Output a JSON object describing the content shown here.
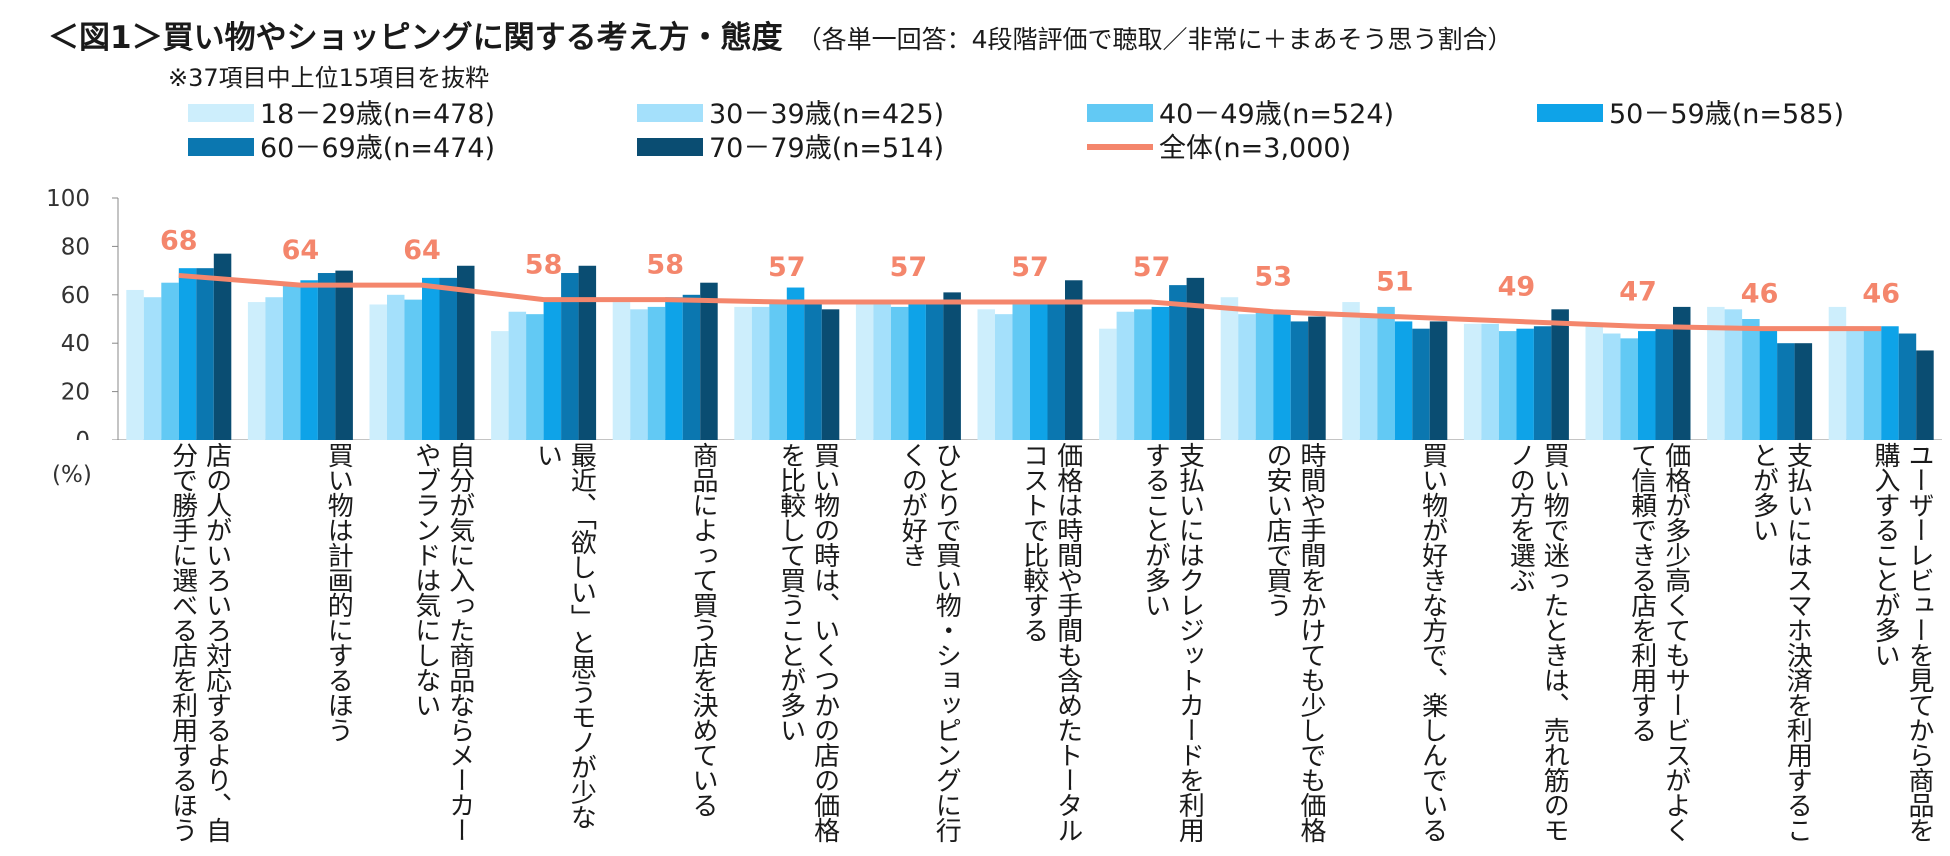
{
  "title": "＜図1＞買い物やショッピングに関する考え方・態度",
  "subtitle": "（各単一回答：4段階評価で聴取／非常に＋まあそう思う割合）",
  "note": "※37項目中上位15項目を抜粋",
  "unit": "(%)",
  "chart_data": {
    "type": "bar",
    "ylim": [
      0,
      100
    ],
    "yticks": [
      "0",
      "20",
      "40",
      "60",
      "80",
      "100"
    ],
    "grid": false,
    "legend_position": "top",
    "categories": [
      "店の人がいろいろ対応するより、自分で勝手に選べる店を利用するほう",
      "買い物は計画的にするほう",
      "自分が気に入った商品ならメーカーやブランドは気にしない",
      "最近、「欲しい」と思うモノが少ない",
      "商品によって買う店を決めている",
      "買い物の時は、いくつかの店の価格を比較して買うことが多い",
      "ひとりで買い物・ショッピングに行くのが好き",
      "価格は時間や手間も含めたトータルコストで比較する",
      "支払いにはクレジットカードを利用することが多い",
      "時間や手間をかけても少しでも価格の安い店で買う",
      "買い物が好きな方で、楽しんでいる",
      "買い物で迷ったときは、売れ筋のモノの方を選ぶ",
      "価格が多少高くてもサービスがよくて信頼できる店を利用する",
      "支払いにはスマホ決済を利用することが多い",
      "ユーザーレビューを見てから商品を購入することが多い"
    ],
    "series": [
      {
        "name": "18－29歳(n=478)",
        "color": "#cdeefc",
        "values": [
          62,
          57,
          56,
          45,
          57,
          55,
          56,
          54,
          46,
          59,
          57,
          48,
          47,
          55,
          55
        ]
      },
      {
        "name": "30－39歳(n=425)",
        "color": "#a4e0fb",
        "values": [
          59,
          59,
          60,
          53,
          54,
          55,
          58,
          52,
          53,
          52,
          52,
          48,
          44,
          54,
          47
        ]
      },
      {
        "name": "40－49歳(n=524)",
        "color": "#62c9f4",
        "values": [
          65,
          64,
          58,
          52,
          55,
          57,
          55,
          57,
          54,
          53,
          55,
          45,
          42,
          50,
          46
        ]
      },
      {
        "name": "50－59歳(n=585)",
        "color": "#0ea3e8",
        "values": [
          71,
          66,
          67,
          58,
          59,
          63,
          56,
          56,
          55,
          52,
          49,
          46,
          45,
          46,
          47
        ]
      },
      {
        "name": "60－69歳(n=474)",
        "color": "#0b77b0",
        "values": [
          71,
          69,
          67,
          69,
          60,
          56,
          57,
          57,
          64,
          49,
          46,
          47,
          47,
          40,
          44
        ]
      },
      {
        "name": "70－79歳(n=514)",
        "color": "#0a4d72",
        "values": [
          77,
          70,
          72,
          72,
          65,
          54,
          61,
          66,
          67,
          51,
          49,
          54,
          55,
          40,
          37
        ]
      }
    ],
    "total": {
      "name": "全体(n=3,000)",
      "color": "#f4866c",
      "values": [
        68,
        64,
        64,
        58,
        58,
        57,
        57,
        57,
        57,
        53,
        51,
        49,
        47,
        46,
        46
      ]
    }
  }
}
